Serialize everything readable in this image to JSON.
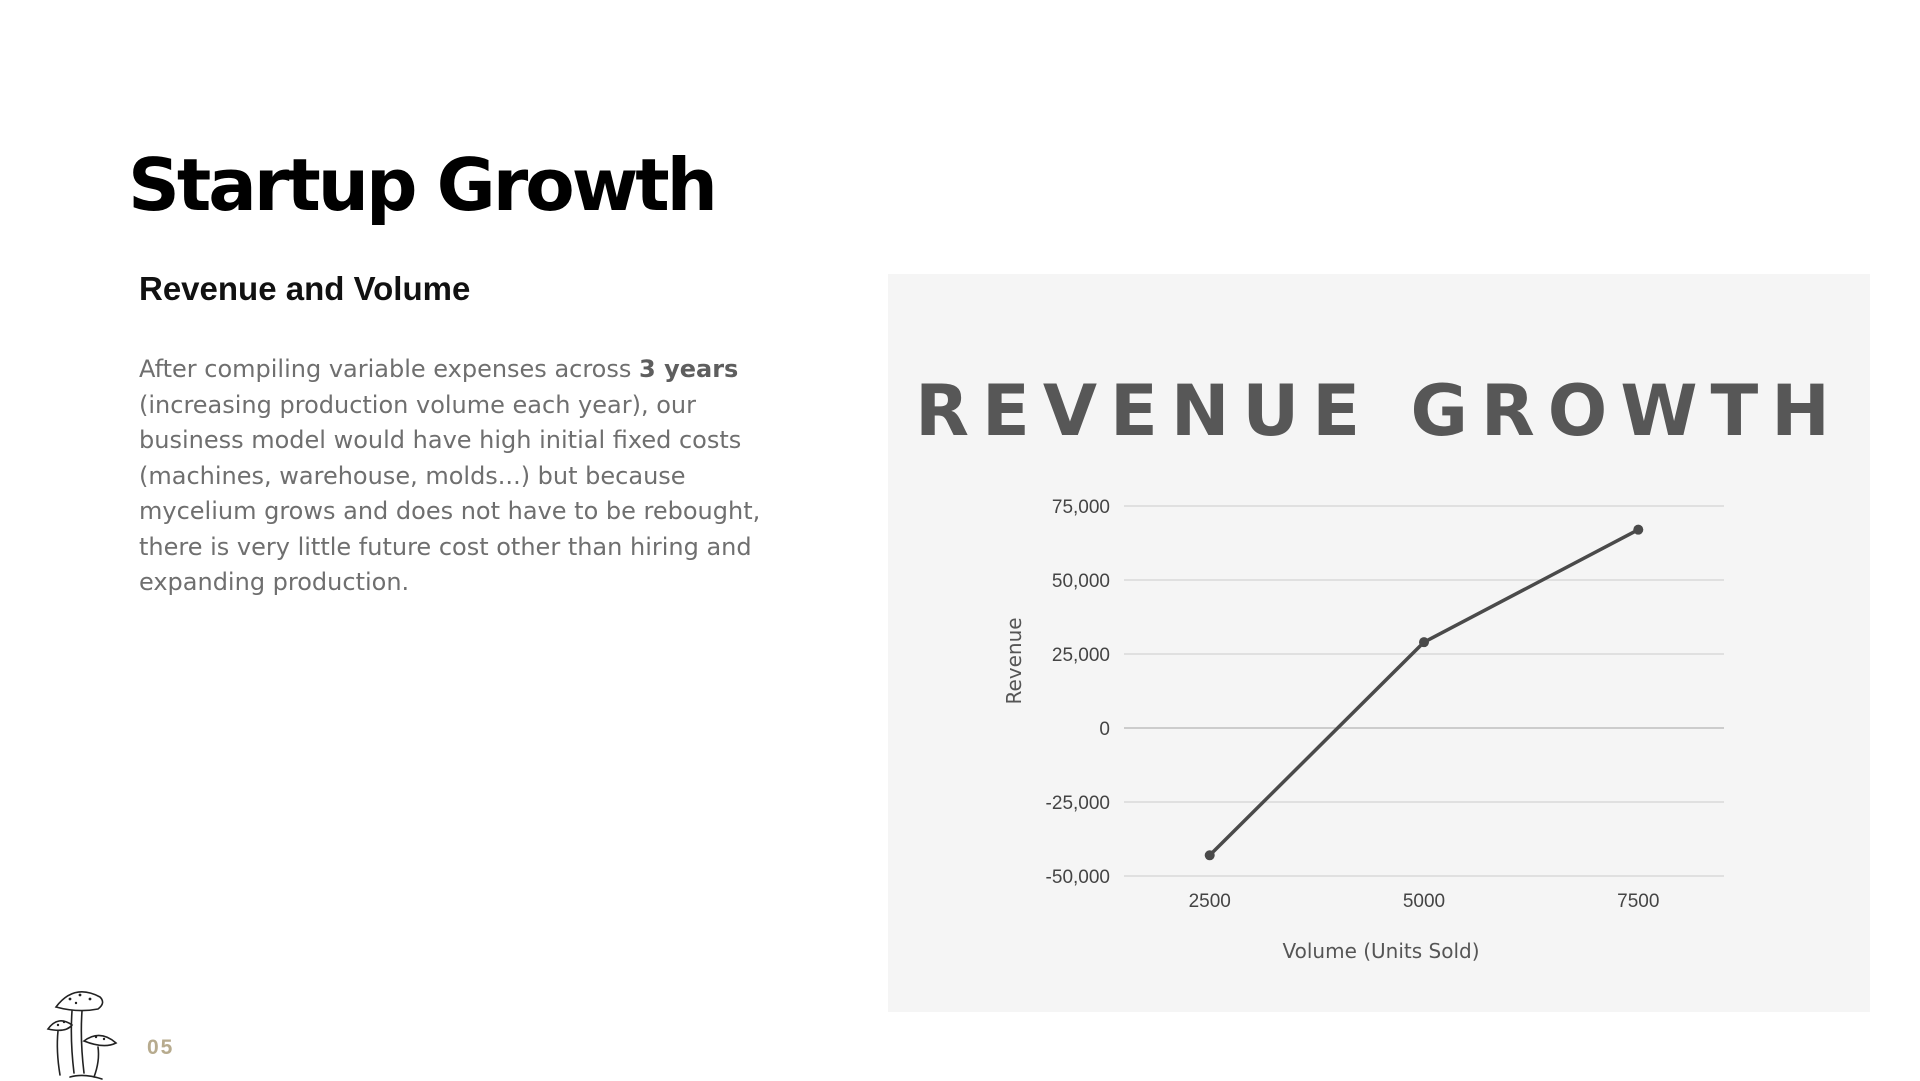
{
  "slide": {
    "title": "Startup Growth",
    "subtitle": "Revenue and Volume",
    "body_before": "After compiling variable expenses across ",
    "body_bold": "3 years",
    "body_after": " (increasing production volume each year), our business model would have high initial fixed costs (machines, warehouse, molds...) but because mycelium grows and does not have to be rebought, there is very little future cost other than hiring and expanding production.",
    "page_number": "05"
  },
  "colors": {
    "line": "#4a4a4a",
    "grid": "#d4d4d4",
    "panel": "#f5f5f5",
    "title": "#575757",
    "page_number": "#b7ab8e"
  },
  "icons": {
    "logo": "mushroom-sketch-icon"
  },
  "chart_data": {
    "type": "line",
    "title": "REVENUE GROWTH",
    "xlabel": "Volume (Units Sold)",
    "ylabel": "Revenue",
    "x": [
      2500,
      5000,
      7500
    ],
    "x_tick_labels": [
      "2500",
      "5000",
      "7500"
    ],
    "series": [
      {
        "values": [
          -43000,
          29000,
          67000
        ]
      }
    ],
    "ylim": [
      -50000,
      75000
    ],
    "y_ticks": [
      75000,
      50000,
      25000,
      0,
      -25000,
      -50000
    ],
    "y_tick_labels": [
      "75,000",
      "50,000",
      "25,000",
      "0",
      "-25,000",
      "-50,000"
    ],
    "grid": true,
    "legend": "none"
  }
}
